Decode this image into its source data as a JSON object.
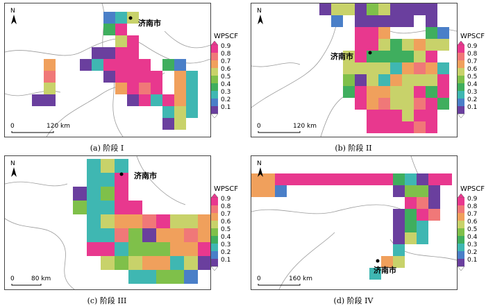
{
  "legend": {
    "title": "WPSCF",
    "ticks": [
      "0.9",
      "0.8",
      "0.7",
      "0.6",
      "0.5",
      "0.4",
      "0.3",
      "0.2",
      "0.1"
    ],
    "colors": [
      "#e8388e",
      "#f07878",
      "#f0a05c",
      "#c8d26a",
      "#7fc04a",
      "#3fae5e",
      "#3fb7b2",
      "#4a7fc8",
      "#6a3f9e"
    ]
  },
  "north_label": "N",
  "city_name": "济南市",
  "panels": [
    {
      "caption": "(a)  阶段 I",
      "scale_zero": "0",
      "scale_label": "120 km"
    },
    {
      "caption": "(b)  阶段 II",
      "scale_zero": "0",
      "scale_label": "120 km"
    },
    {
      "caption": "(c)  阶段 III",
      "scale_zero": "0",
      "scale_label": "80 km"
    },
    {
      "caption": "(d)  阶段 IV",
      "scale_zero": "0",
      "scale_label": "160 km"
    }
  ]
}
